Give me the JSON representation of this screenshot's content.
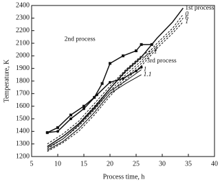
{
  "chart_data": {
    "type": "line",
    "xlabel": "Process time, h",
    "ylabel": "Temperature, K",
    "xlim": [
      5,
      40
    ],
    "xticks": [
      5,
      10,
      15,
      20,
      25,
      30,
      35,
      40
    ],
    "ylim": [
      1200,
      2400
    ],
    "yticks": [
      1200,
      1300,
      1400,
      1500,
      1600,
      1700,
      1800,
      1900,
      2000,
      2100,
      2200,
      2300,
      2400
    ],
    "series": [
      {
        "name": "1st process",
        "color": "#111111",
        "style": "solid",
        "marker": "none",
        "x": [
          8,
          11,
          14,
          17,
          20,
          23,
          26,
          29,
          32,
          34
        ],
        "values": [
          1280,
          1360,
          1460,
          1590,
          1740,
          1880,
          1990,
          2140,
          2270,
          2380
        ]
      },
      {
        "name": "0",
        "color": "#111111",
        "style": "dashed",
        "marker": "none",
        "x": [
          8,
          11,
          14,
          17,
          20,
          23,
          26,
          29,
          32,
          34
        ],
        "values": [
          1260,
          1340,
          1440,
          1570,
          1720,
          1850,
          1960,
          2100,
          2220,
          2330
        ]
      },
      {
        "name": "6",
        "color": "#111111",
        "style": "dashed",
        "marker": "none",
        "x": [
          8,
          11,
          14,
          17,
          20,
          23,
          26,
          29,
          32,
          34
        ],
        "values": [
          1250,
          1320,
          1420,
          1550,
          1700,
          1830,
          1940,
          2080,
          2200,
          2300
        ]
      },
      {
        "name": "1",
        "color": "#111111",
        "style": "dashed",
        "marker": "none",
        "x": [
          8,
          11,
          14,
          17,
          20,
          23,
          26,
          29,
          32,
          34
        ],
        "values": [
          1240,
          1310,
          1400,
          1530,
          1680,
          1810,
          1920,
          2060,
          2180,
          2270
        ]
      },
      {
        "name": "2nd process",
        "color": "#111111",
        "style": "solid",
        "marker": "square",
        "x": [
          8,
          10,
          12.5,
          15,
          17,
          18.5,
          20,
          22.5,
          25,
          26,
          28
        ],
        "values": [
          1390,
          1430,
          1530,
          1600,
          1670,
          1780,
          1940,
          2000,
          2040,
          2090,
          2090
        ]
      },
      {
        "name": "3",
        "color": "#111111",
        "style": "dashed",
        "marker": "none",
        "x": [
          8,
          11,
          14,
          17,
          20,
          23,
          26,
          28
        ],
        "values": [
          1300,
          1380,
          1480,
          1620,
          1760,
          1890,
          2000,
          2050
        ]
      },
      {
        "name": "1",
        "color": "#111111",
        "style": "dashed",
        "marker": "none",
        "x": [
          8,
          11,
          14,
          17,
          20,
          23,
          26,
          28
        ],
        "values": [
          1280,
          1360,
          1460,
          1600,
          1740,
          1870,
          1980,
          2030
        ]
      },
      {
        "name": "3rd process",
        "color": "#111111",
        "style": "solid",
        "marker": "circle",
        "x": [
          8,
          10,
          12.5,
          15,
          17.5,
          20,
          22.5,
          25,
          26
        ],
        "values": [
          1390,
          1400,
          1500,
          1580,
          1690,
          1790,
          1820,
          1880,
          1910
        ]
      },
      {
        "name": "1",
        "color": "#111111",
        "style": "solid",
        "marker": "none",
        "x": [
          8,
          11,
          14,
          17,
          20,
          23,
          26
        ],
        "values": [
          1270,
          1340,
          1450,
          1580,
          1720,
          1800,
          1890
        ]
      },
      {
        "name": "1.1",
        "color": "#111111",
        "style": "solid",
        "marker": "none",
        "x": [
          8,
          11,
          14,
          17,
          20,
          23,
          26
        ],
        "values": [
          1250,
          1320,
          1420,
          1550,
          1700,
          1780,
          1850
        ]
      }
    ]
  }
}
